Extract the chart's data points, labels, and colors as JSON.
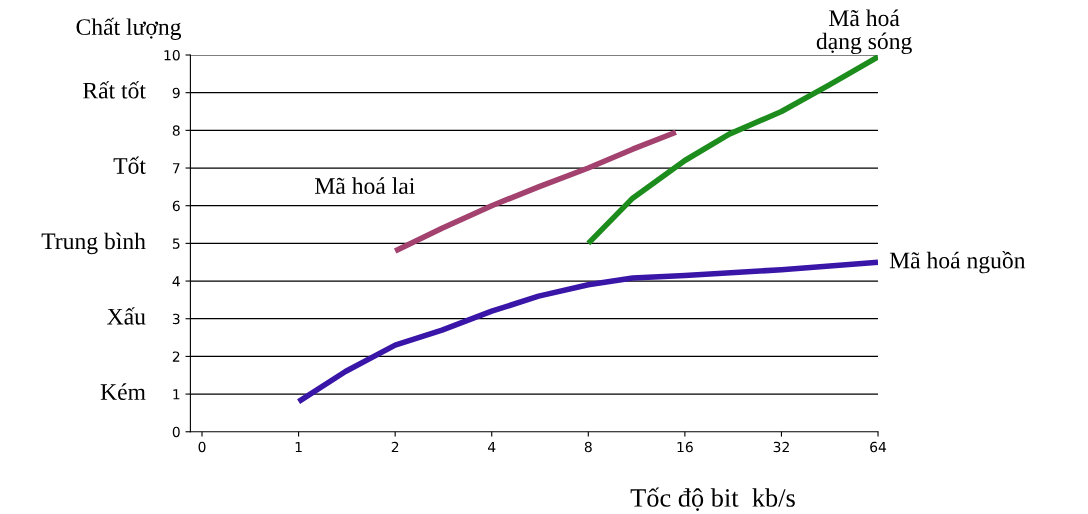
{
  "chart_data": {
    "type": "line",
    "ylabel": "Chất lượng",
    "xlabel": "Tốc độ bit  kb/s",
    "log": "x",
    "xlim": [
      0.46,
      64
    ],
    "xticks": [
      {
        "value": 0.5,
        "label": "0"
      },
      1,
      2,
      4,
      8,
      16,
      32,
      64
    ],
    "ylim": [
      0,
      10
    ],
    "yticks": [
      0,
      1,
      2,
      3,
      4,
      5,
      6,
      7,
      8,
      9,
      10
    ],
    "annotations": [
      "Rất tốt",
      "Tốt",
      "Trung bình",
      "Xấu",
      "Kém"
    ],
    "grid": "y",
    "legend": false,
    "line_style": "solid",
    "marker": "none",
    "series": [
      {
        "name": "Mã hoá nguồn",
        "color": "#3a16a8",
        "x": [
          1,
          1.4,
          2,
          2.8,
          4,
          5.6,
          8,
          11,
          16,
          32,
          64
        ],
        "values": [
          0.8,
          1.6,
          2.3,
          2.7,
          3.2,
          3.6,
          3.9,
          4.08,
          4.15,
          4.3,
          4.5
        ]
      },
      {
        "name": "Mã hoá lai",
        "color": "#a3416f",
        "x": [
          2,
          2.8,
          4,
          5.6,
          8,
          11,
          15
        ],
        "values": [
          4.8,
          5.4,
          6.0,
          6.5,
          7.0,
          7.5,
          7.95
        ]
      },
      {
        "name": "Mã hoá\ndạng sóng",
        "color": "#1c8c1c",
        "x": [
          8,
          11,
          16,
          22,
          32,
          45,
          64
        ],
        "values": [
          5.0,
          6.2,
          7.2,
          7.9,
          8.5,
          9.2,
          9.95
        ]
      }
    ]
  }
}
